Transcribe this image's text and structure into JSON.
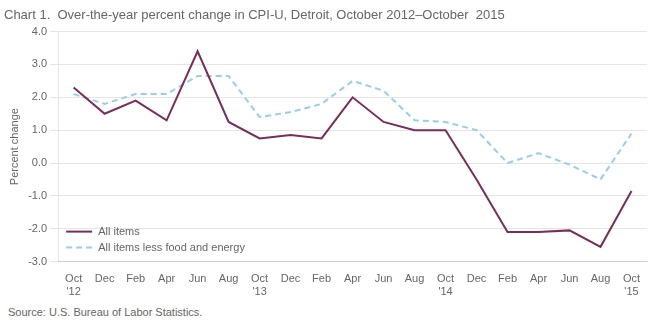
{
  "chart_data": {
    "type": "line",
    "title": "Chart 1.  Over-the-year percent change in CPI-U, Detroit, October 2012–October  2015",
    "ylabel": "Percent change",
    "annotations": [
      "Source: U.S. Bureau of Labor Statistics."
    ],
    "categories": [
      "Oct\n'12",
      "Dec",
      "Feb",
      "Apr",
      "Jun",
      "Aug",
      "Oct\n'13",
      "Dec",
      "Feb",
      "Apr",
      "Jun",
      "Aug",
      "Oct\n'14",
      "Dec",
      "Feb",
      "Apr",
      "Jun",
      "Aug",
      "Oct\n'15"
    ],
    "series": [
      {
        "name": "All items",
        "color": "#7b2d5a",
        "line_style": "solid",
        "values": [
          2.3,
          1.5,
          1.9,
          1.3,
          3.4,
          1.25,
          0.75,
          0.85,
          0.75,
          2.0,
          1.25,
          1.0,
          1.0,
          -0.5,
          -2.1,
          -2.1,
          -2.05,
          -2.55,
          -0.85
        ]
      },
      {
        "name": "All items less food and energy",
        "color": "#99ccee",
        "line_style": "dashed",
        "values": [
          2.1,
          1.8,
          2.1,
          2.1,
          2.65,
          2.65,
          1.4,
          1.55,
          1.8,
          2.5,
          2.2,
          1.3,
          1.25,
          1.0,
          0.0,
          0.3,
          -0.05,
          -0.5,
          0.9
        ]
      }
    ],
    "ylim": [
      -3.0,
      4.0
    ],
    "yticks": [
      {
        "value": -3.0,
        "label": "-3.0"
      },
      {
        "value": -2.0,
        "label": "-2.0"
      },
      {
        "value": -1.0,
        "label": "-1.0"
      },
      {
        "value": 0.0,
        "label": "0.0"
      },
      {
        "value": 1.0,
        "label": "1.0"
      },
      {
        "value": 2.0,
        "label": "2.0"
      },
      {
        "value": 3.0,
        "label": "3.0"
      },
      {
        "value": 4.0,
        "label": "4.0"
      }
    ],
    "grid": true,
    "legend": "lower left"
  }
}
